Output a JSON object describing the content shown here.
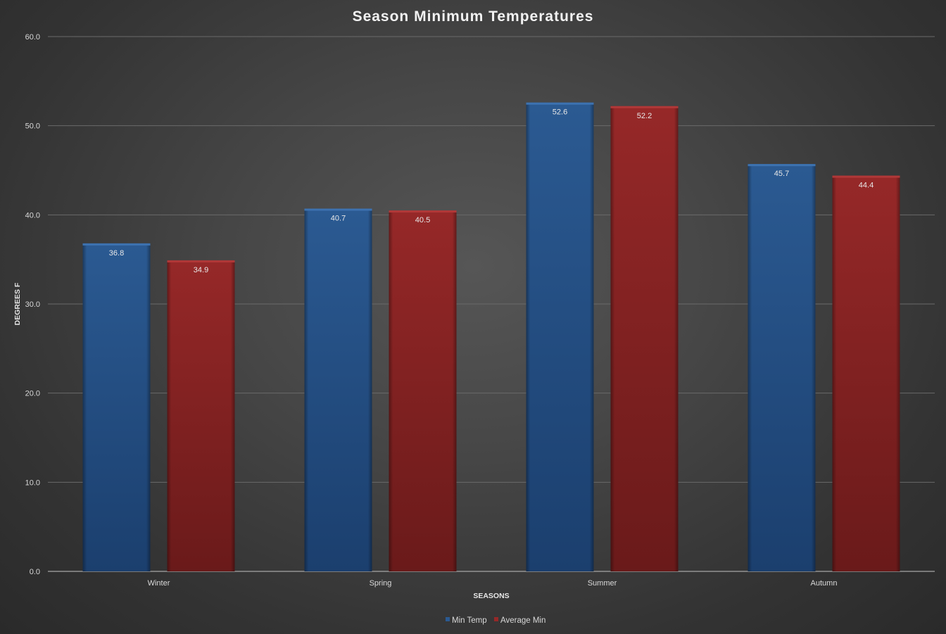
{
  "chart_data": {
    "type": "bar",
    "title": "Season Minimum Temperatures",
    "xlabel": "SEASONS",
    "ylabel": "DEGREES F",
    "categories": [
      "Winter",
      "Spring",
      "Summer",
      "Autumn"
    ],
    "series": [
      {
        "name": "Min Temp",
        "values": [
          36.8,
          40.7,
          52.6,
          45.7
        ],
        "color": "#234f85"
      },
      {
        "name": "Average Min",
        "values": [
          34.9,
          40.5,
          52.2,
          44.4
        ],
        "color": "#8a2424"
      }
    ],
    "ylim": [
      0,
      60
    ],
    "yticks": [
      "0.0",
      "10.0",
      "20.0",
      "30.0",
      "40.0",
      "50.0",
      "60.0"
    ],
    "grid": true,
    "legend": "bottom",
    "data_labels": true
  }
}
